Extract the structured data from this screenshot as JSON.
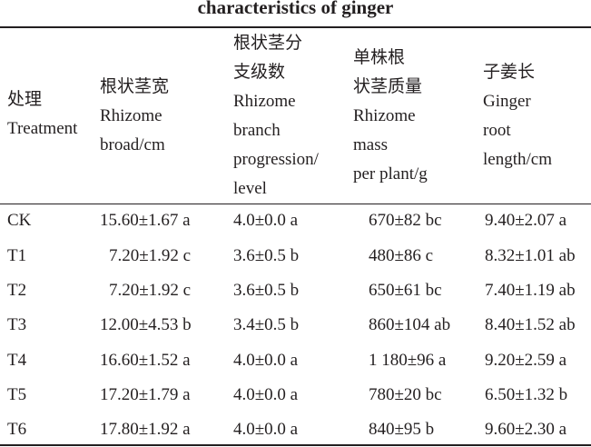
{
  "title": "characteristics of ginger",
  "table": {
    "header": [
      [
        "处理",
        "Treatment"
      ],
      [
        "根状茎宽",
        "Rhizome",
        "broad/cm"
      ],
      [
        "根状茎分",
        "支级数",
        "Rhizome",
        "branch",
        "progression/",
        "level"
      ],
      [
        "单株根",
        "状茎质量",
        "Rhizome",
        "mass",
        "per plant/g"
      ],
      [
        "子姜长",
        "Ginger",
        "root",
        "length/cm"
      ]
    ],
    "rows": [
      [
        "CK",
        "15.60±1.67 a",
        "4.0±0.0 a",
        "670±82 bc",
        "9.40±2.07 a"
      ],
      [
        "T1",
        "7.20±1.92 c",
        "3.6±0.5 b",
        "480±86 c",
        "8.32±1.01 ab"
      ],
      [
        "T2",
        "7.20±1.92 c",
        "3.6±0.5 b",
        "650±61 bc",
        "7.40±1.19 ab"
      ],
      [
        "T3",
        "12.00±4.53 b",
        "3.4±0.5 b",
        "860±104 ab",
        "8.40±1.52 ab"
      ],
      [
        "T4",
        "16.60±1.52 a",
        "4.0±0.0 a",
        "1 180±96 a",
        "9.20±2.59 a"
      ],
      [
        "T5",
        "17.20±1.79 a",
        "4.0±0.0 a",
        "780±20 bc",
        "6.50±1.32 b"
      ],
      [
        "T6",
        "17.80±1.92 a",
        "4.0±0.0 a",
        "840±95 b",
        "9.60±2.30 a"
      ]
    ]
  }
}
